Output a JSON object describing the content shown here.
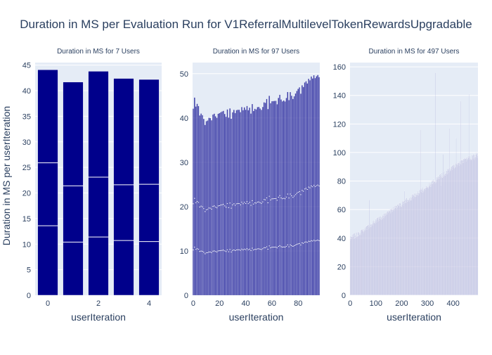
{
  "chart_data": {
    "title": "Duration in MS per Evaluation Run for V1ReferralMultilevelTokenRewardsUpgradable",
    "ylabel": "Duration in MS per userIteration",
    "type": "bar",
    "colors": {
      "plot_bg": "#e5ecf6",
      "text": "#2a3f5f",
      "grid": "#ffffff"
    },
    "subplots": [
      {
        "subtitle": "Duration in MS for 7 Users",
        "xlabel": "userIteration",
        "bar_color": "#00008b",
        "bar_opacity": 1,
        "xlim": [
          -0.5,
          4.5
        ],
        "ylim": [
          0,
          45.5
        ],
        "xticks": [
          0,
          2,
          4
        ],
        "yticks": [
          0,
          5,
          10,
          15,
          20,
          25,
          30,
          35,
          40,
          45
        ],
        "x": [
          0,
          1,
          2,
          3,
          4
        ],
        "values": [
          44.1,
          41.7,
          43.8,
          42.4,
          42.2
        ],
        "segment_lines": [
          [
            13.6,
            25.9
          ],
          [
            10.4,
            21.4
          ],
          [
            11.4,
            23.1
          ],
          [
            10.7,
            21.6
          ],
          [
            10.5,
            21.7
          ]
        ]
      },
      {
        "subtitle": "Duration in MS for 97 Users",
        "xlabel": "userIteration",
        "bar_color": "#00008b",
        "bar_opacity": 0.75,
        "xlim": [
          -0.5,
          96.5
        ],
        "ylim": [
          0,
          52.5
        ],
        "xticks": [
          0,
          20,
          40,
          60,
          80
        ],
        "yticks": [
          0,
          10,
          20,
          30,
          40,
          50
        ],
        "trend": [
          [
            0,
            41.5
          ],
          [
            3,
            43
          ],
          [
            6,
            40
          ],
          [
            10,
            39
          ],
          [
            15,
            40
          ],
          [
            20,
            40.5
          ],
          [
            25,
            41
          ],
          [
            30,
            41
          ],
          [
            35,
            41.5
          ],
          [
            40,
            41.5
          ],
          [
            45,
            42
          ],
          [
            50,
            42.5
          ],
          [
            55,
            43
          ],
          [
            60,
            43.5
          ],
          [
            65,
            44
          ],
          [
            70,
            44.5
          ],
          [
            75,
            45
          ],
          [
            80,
            46
          ],
          [
            85,
            47
          ],
          [
            90,
            48.5
          ],
          [
            96,
            49.5
          ]
        ],
        "spikes": [
          [
            1,
            44.6
          ],
          [
            3,
            43.2
          ],
          [
            58,
            45
          ],
          [
            85,
            48
          ],
          [
            93,
            49
          ],
          [
            95,
            49.7
          ]
        ],
        "noise": 1.2,
        "segment_lines": [
          [
            0.25,
            0.07
          ],
          [
            0.5,
            0.1
          ]
        ]
      },
      {
        "subtitle": "Duration in MS for 497 Users",
        "xlabel": "userIteration",
        "bar_color": "#00008b",
        "bar_opacity": 0.18,
        "xlim": [
          -0.5,
          496.5
        ],
        "ylim": [
          0,
          163
        ],
        "xticks": [
          0,
          100,
          200,
          300,
          400
        ],
        "yticks": [
          0,
          20,
          40,
          60,
          80,
          100,
          120,
          140,
          160
        ],
        "trend": [
          [
            0,
            40
          ],
          [
            50,
            45
          ],
          [
            100,
            52
          ],
          [
            150,
            58
          ],
          [
            200,
            64
          ],
          [
            250,
            70
          ],
          [
            300,
            76
          ],
          [
            350,
            83
          ],
          [
            400,
            90
          ],
          [
            450,
            95
          ],
          [
            496,
            98
          ]
        ],
        "spikes": [
          [
            74,
            67
          ],
          [
            212,
            73
          ],
          [
            274,
            116
          ],
          [
            304,
            75
          ],
          [
            332,
            156
          ],
          [
            354,
            77
          ],
          [
            362,
            99
          ],
          [
            386,
            117
          ],
          [
            412,
            110
          ],
          [
            430,
            136
          ],
          [
            448,
            96
          ],
          [
            462,
            141
          ],
          [
            478,
            99
          ],
          [
            490,
            100
          ]
        ],
        "noise": 2
      }
    ]
  }
}
